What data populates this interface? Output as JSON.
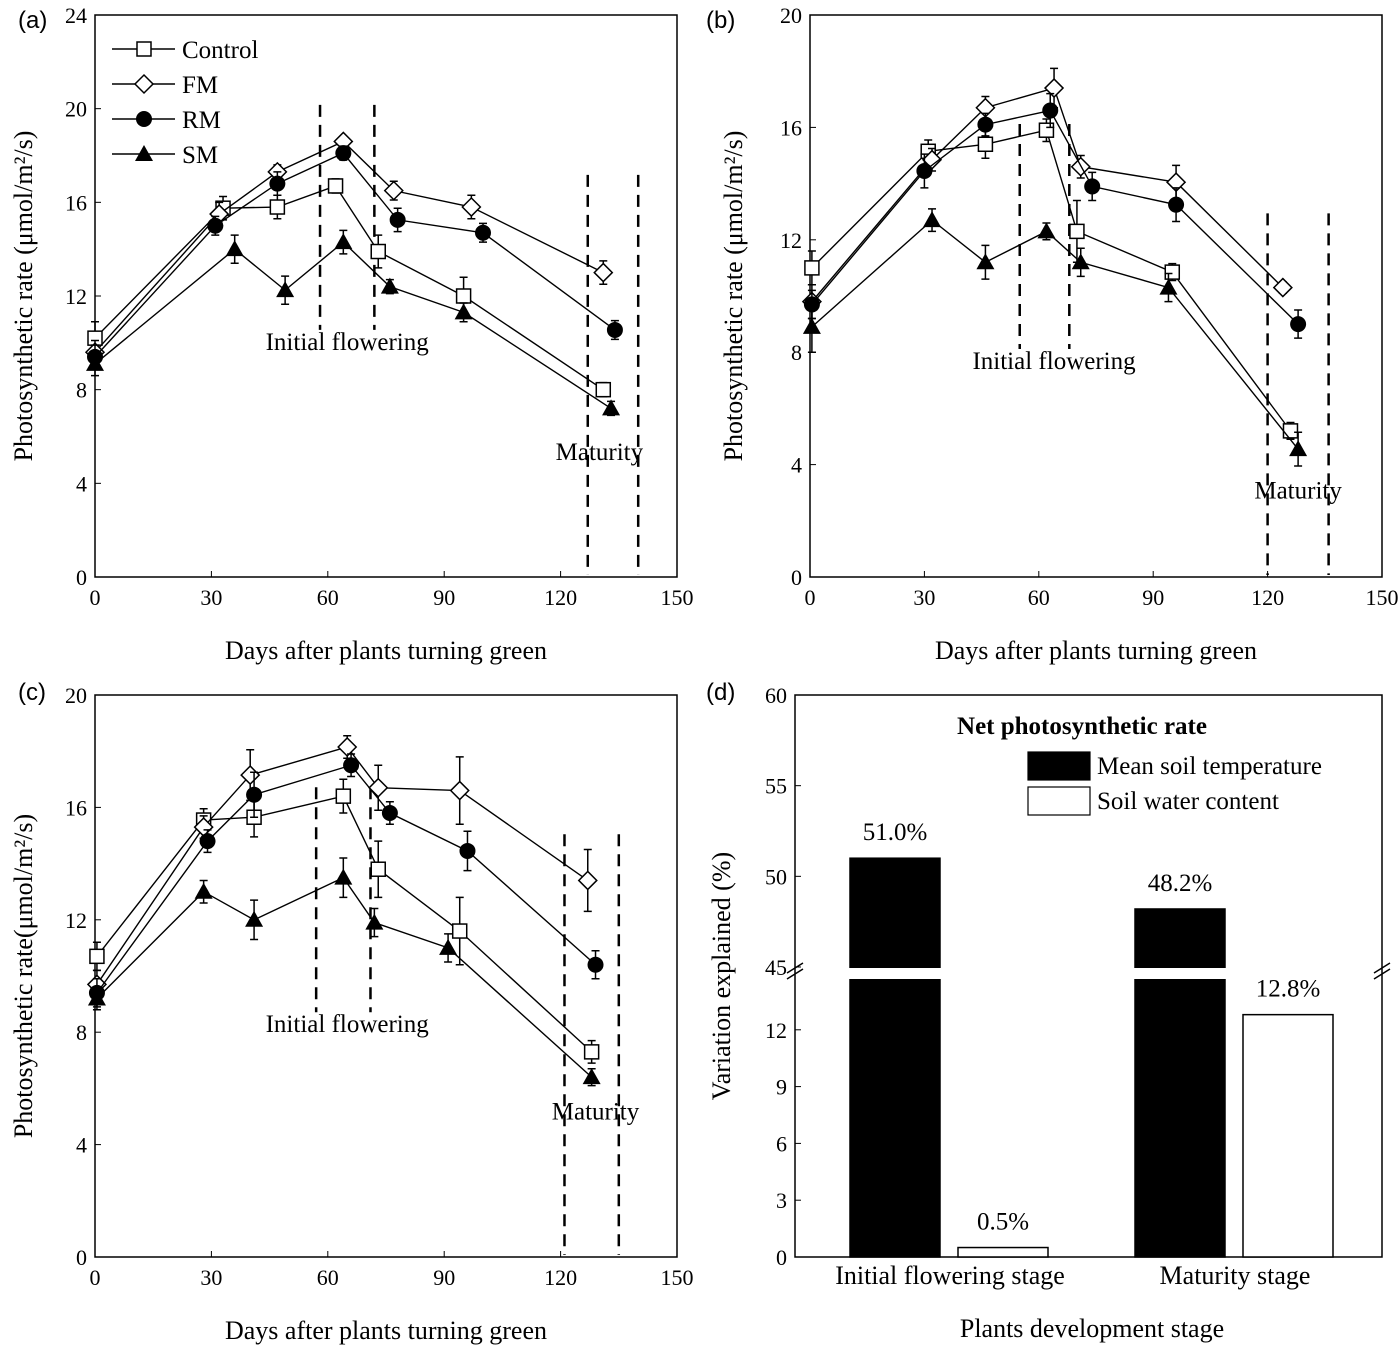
{
  "chart_data": [
    {
      "panel": "(a)",
      "type": "line",
      "xlabel": "Days after plants turning green",
      "ylabel": "Photosynthetic rate (μmol/m²/s)",
      "xlim": [
        0,
        150
      ],
      "ylim": [
        0,
        24
      ],
      "xticks": [
        0,
        30,
        60,
        90,
        120,
        150
      ],
      "yticks": [
        0,
        4,
        8,
        12,
        16,
        20,
        24
      ],
      "legend": "top-left",
      "annotations": [
        {
          "text": "Initial flowering",
          "x": 65,
          "y": 9.7
        },
        {
          "text": "Maturity",
          "x": 130,
          "y": 5
        }
      ],
      "stage_lines": [
        58,
        72,
        127,
        140
      ],
      "series": [
        {
          "name": "Control",
          "marker": "square-open",
          "x": [
            0,
            33,
            47,
            62,
            73,
            95,
            131
          ],
          "y": [
            10.2,
            15.75,
            15.8,
            16.7,
            13.9,
            12.0,
            8.0
          ],
          "yerr": [
            0.7,
            0.5,
            0.5,
            0.3,
            0.7,
            0.8,
            0.3
          ]
        },
        {
          "name": "FM",
          "marker": "diamond-open",
          "x": [
            0,
            32,
            47,
            64,
            77,
            97,
            131
          ],
          "y": [
            9.6,
            15.5,
            17.3,
            18.6,
            16.5,
            15.8,
            13.0
          ],
          "yerr": [
            0.5,
            0.5,
            0.3,
            0.2,
            0.4,
            0.5,
            0.5
          ]
        },
        {
          "name": "RM",
          "marker": "circle-filled",
          "x": [
            0,
            31,
            47,
            64,
            78,
            100,
            134
          ],
          "y": [
            9.4,
            15.0,
            16.8,
            18.1,
            15.25,
            14.7,
            10.55
          ],
          "yerr": [
            0.5,
            0.4,
            0.5,
            0.3,
            0.5,
            0.4,
            0.4
          ]
        },
        {
          "name": "SM",
          "marker": "triangle-filled",
          "x": [
            0,
            36,
            49,
            64,
            76,
            95,
            133
          ],
          "y": [
            9.1,
            14.0,
            12.25,
            14.3,
            12.4,
            11.3,
            7.2
          ],
          "yerr": [
            0.5,
            0.6,
            0.6,
            0.5,
            0.3,
            0.4,
            0.3
          ]
        }
      ]
    },
    {
      "panel": "(b)",
      "type": "line",
      "xlabel": "Days after plants turning green",
      "ylabel": "Photosynthetic rate (μmol/m²/s)",
      "xlim": [
        0,
        150
      ],
      "ylim": [
        0,
        20
      ],
      "xticks": [
        0,
        30,
        60,
        90,
        120,
        150
      ],
      "yticks": [
        0,
        4,
        8,
        12,
        16,
        20
      ],
      "annotations": [
        {
          "text": "Initial flowering",
          "x": 64,
          "y": 7.4
        },
        {
          "text": "Maturity",
          "x": 128,
          "y": 2.8
        }
      ],
      "stage_lines": [
        55,
        68,
        120,
        136
      ],
      "series": [
        {
          "name": "Control",
          "marker": "square-open",
          "x": [
            0.5,
            31,
            46,
            62,
            70,
            95,
            126
          ],
          "y": [
            11.0,
            15.15,
            15.4,
            15.9,
            12.3,
            10.85,
            5.2
          ],
          "yerr": [
            0.6,
            0.4,
            0.5,
            0.4,
            1.1,
            0.3,
            0.3
          ]
        },
        {
          "name": "FM",
          "marker": "diamond-open",
          "x": [
            0.5,
            32,
            46,
            64,
            71,
            96,
            124
          ],
          "y": [
            9.8,
            14.85,
            16.7,
            17.4,
            14.6,
            14.05,
            10.3
          ],
          "yerr": [
            0.6,
            0.4,
            0.4,
            0.7,
            0.4,
            0.6,
            0.2
          ]
        },
        {
          "name": "RM",
          "marker": "circle-filled",
          "x": [
            0.5,
            30,
            46,
            63,
            74,
            96,
            128
          ],
          "y": [
            9.7,
            14.45,
            16.1,
            16.6,
            13.9,
            13.25,
            9.0
          ],
          "yerr": [
            0.5,
            0.6,
            0.4,
            0.6,
            0.5,
            0.6,
            0.5
          ]
        },
        {
          "name": "SM",
          "marker": "triangle-filled",
          "x": [
            0.5,
            32,
            46,
            62,
            71,
            94,
            128
          ],
          "y": [
            8.9,
            12.7,
            11.2,
            12.3,
            11.2,
            10.3,
            4.55
          ],
          "yerr": [
            0.9,
            0.4,
            0.6,
            0.3,
            0.5,
            0.5,
            0.6
          ]
        }
      ]
    },
    {
      "panel": "(c)",
      "type": "line",
      "xlabel": "Days after plants turning green",
      "ylabel": "Photosynthetic rate(μmol/m²/s)",
      "xlim": [
        0,
        150
      ],
      "ylim": [
        0,
        20
      ],
      "xticks": [
        0,
        30,
        60,
        90,
        120,
        150
      ],
      "yticks": [
        0,
        4,
        8,
        12,
        16,
        20
      ],
      "annotations": [
        {
          "text": "Initial flowering",
          "x": 65,
          "y": 8.0
        },
        {
          "text": "Maturity",
          "x": 129,
          "y": 4.9
        }
      ],
      "stage_lines": [
        57,
        71,
        121,
        135
      ],
      "series": [
        {
          "name": "Control",
          "marker": "square-open",
          "x": [
            0.5,
            28,
            41,
            64,
            73,
            94,
            128
          ],
          "y": [
            10.7,
            15.55,
            15.65,
            16.4,
            13.8,
            11.6,
            7.3
          ],
          "yerr": [
            0.5,
            0.4,
            0.7,
            0.6,
            1.0,
            1.2,
            0.4
          ]
        },
        {
          "name": "FM",
          "marker": "diamond-open",
          "x": [
            0.5,
            28,
            40,
            65,
            73,
            94,
            127
          ],
          "y": [
            9.7,
            15.3,
            17.15,
            18.15,
            16.7,
            16.6,
            13.4
          ],
          "yerr": [
            0.5,
            0.4,
            0.9,
            0.4,
            0.8,
            1.2,
            1.1
          ]
        },
        {
          "name": "RM",
          "marker": "circle-filled",
          "x": [
            0.5,
            29,
            41,
            66,
            76,
            96,
            129
          ],
          "y": [
            9.4,
            14.8,
            16.45,
            17.5,
            15.8,
            14.45,
            10.4
          ],
          "yerr": [
            0.5,
            0.4,
            0.8,
            0.4,
            0.4,
            0.7,
            0.5
          ]
        },
        {
          "name": "SM",
          "marker": "triangle-filled",
          "x": [
            0.5,
            28,
            41,
            64,
            72,
            91,
            128
          ],
          "y": [
            9.2,
            13.0,
            12.0,
            13.5,
            11.9,
            11.0,
            6.4
          ],
          "yerr": [
            0.4,
            0.4,
            0.7,
            0.7,
            0.5,
            0.5,
            0.3
          ]
        }
      ]
    },
    {
      "panel": "(d)",
      "type": "bar",
      "title": "Net photosynthetic rate",
      "xlabel": "Plants development stage",
      "ylabel": "Variation explained (%)",
      "categories": [
        "Initial flowering stage",
        "Maturity stage"
      ],
      "axis_break": [
        15,
        45
      ],
      "ylim_lower": [
        0,
        15
      ],
      "ylim_upper": [
        45,
        60
      ],
      "yticks": [
        0,
        3,
        6,
        9,
        12,
        45,
        50,
        55,
        60
      ],
      "legend": "top-right",
      "series": [
        {
          "name": "Mean soil temperature",
          "color": "#000000",
          "values": [
            51.0,
            48.2
          ],
          "labels": [
            "51.0%",
            "48.2%"
          ]
        },
        {
          "name": "Soil water content",
          "color": "#ffffff",
          "values": [
            0.5,
            12.8
          ],
          "labels": [
            "0.5%",
            "12.8%"
          ]
        }
      ]
    }
  ]
}
